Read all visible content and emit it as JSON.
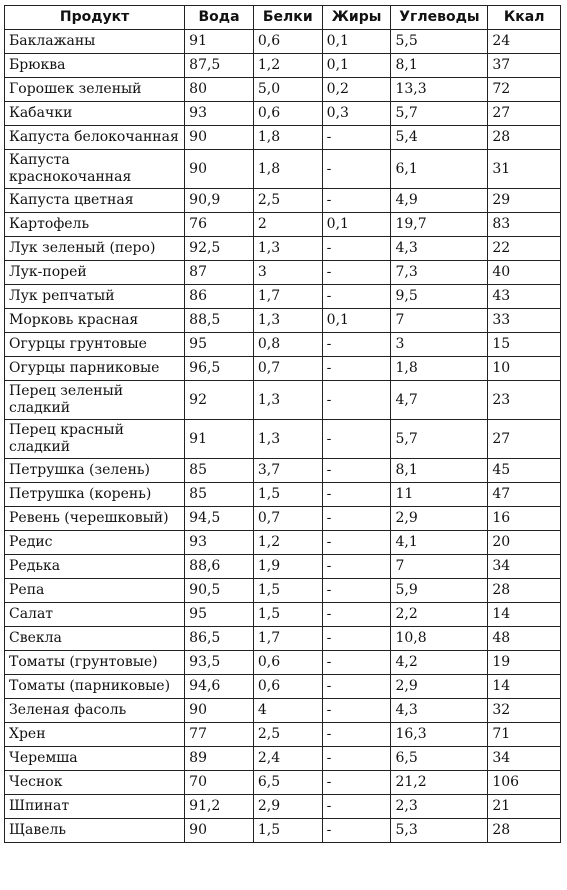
{
  "headers": [
    "Продукт",
    "Вода",
    "Белки",
    "Жиры",
    "Углеводы",
    "Ккал"
  ],
  "rows": [
    [
      "Баклажаны",
      "91",
      "0,6",
      "0,1",
      "5,5",
      "24"
    ],
    [
      "Брюква",
      "87,5",
      "1,2",
      "0,1",
      "8,1",
      "37"
    ],
    [
      "Горошек зеленый",
      "80",
      "5,0",
      "0,2",
      "13,3",
      "72"
    ],
    [
      "Кабачки",
      "93",
      "0,6",
      "0,3",
      "5,7",
      "27"
    ],
    [
      "Капуста белокочанная",
      "90",
      "1,8",
      "-",
      "5,4",
      "28"
    ],
    [
      "Капуста краснокочанная",
      "90",
      "1,8",
      "-",
      "6,1",
      "31"
    ],
    [
      "Капуста цветная",
      "90,9",
      "2,5",
      "-",
      "4,9",
      "29"
    ],
    [
      "Картофель",
      "76",
      "2",
      "0,1",
      "19,7",
      "83"
    ],
    [
      "Лук зеленый (перо)",
      "92,5",
      "1,3",
      "-",
      "4,3",
      "22"
    ],
    [
      "Лук-порей",
      "87",
      "3",
      "-",
      "7,3",
      "40"
    ],
    [
      "Лук репчатый",
      "86",
      "1,7",
      "-",
      "9,5",
      "43"
    ],
    [
      "Морковь красная",
      "88,5",
      "1,3",
      "0,1",
      "7",
      "33"
    ],
    [
      "Огурцы грунтовые",
      "95",
      "0,8",
      "-",
      "3",
      "15"
    ],
    [
      "Огурцы парниковые",
      "96,5",
      "0,7",
      "-",
      "1,8",
      "10"
    ],
    [
      "Перец зеленый сладкий",
      "92",
      "1,3",
      "-",
      "4,7",
      "23"
    ],
    [
      "Перец красный сладкий",
      "91",
      "1,3",
      "-",
      "5,7",
      "27"
    ],
    [
      "Петрушка (зелень)",
      "85",
      "3,7",
      "-",
      "8,1",
      "45"
    ],
    [
      "Петрушка (корень)",
      "85",
      "1,5",
      "-",
      "11",
      "47"
    ],
    [
      "Ревень (черешковый)",
      "94,5",
      "0,7",
      "-",
      "2,9",
      "16"
    ],
    [
      "Редис",
      "93",
      "1,2",
      "-",
      "4,1",
      "20"
    ],
    [
      "Редька",
      "88,6",
      "1,9",
      "-",
      "7",
      "34"
    ],
    [
      "Репа",
      "90,5",
      "1,5",
      "-",
      "5,9",
      "28"
    ],
    [
      "Салат",
      "95",
      "1,5",
      "-",
      "2,2",
      "14"
    ],
    [
      "Свекла",
      "86,5",
      "1,7",
      "-",
      "10,8",
      "48"
    ],
    [
      "Томаты (грунтовые)",
      "93,5",
      "0,6",
      "-",
      "4,2",
      "19"
    ],
    [
      "Томаты (парниковые)",
      "94,6",
      "0,6",
      "-",
      "2,9",
      "14"
    ],
    [
      "Зеленая фасоль",
      "90",
      "4",
      "-",
      "4,3",
      "32"
    ],
    [
      "Хрен",
      "77",
      "2,5",
      "-",
      "16,3",
      "71"
    ],
    [
      "Черемша",
      "89",
      "2,4",
      "-",
      "6,5",
      "34"
    ],
    [
      "Чеснок",
      "70",
      "6,5",
      "-",
      "21,2",
      "106"
    ],
    [
      "Шпинат",
      "91,2",
      "2,9",
      "-",
      "2,3",
      "21"
    ],
    [
      "Щавель",
      "90",
      "1,5",
      "-",
      "5,3",
      "28"
    ]
  ]
}
